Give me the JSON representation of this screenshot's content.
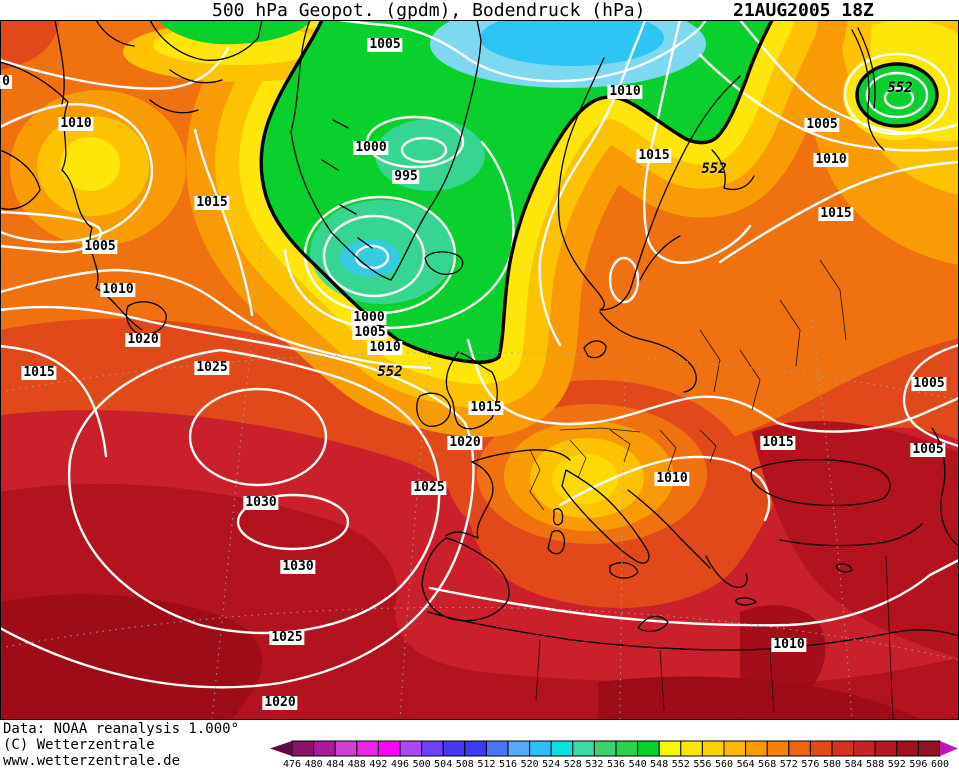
{
  "title": {
    "left": "500 hPa Geopot. (gpdm), Bodendruck (hPa)",
    "right": "21AUG2005 18Z"
  },
  "footer": {
    "credit_line1": "Data: NOAA reanalysis 1.000°",
    "credit_line2": "(C) Wetterzentrale",
    "credit_line3": "www.wetterzentrale.de"
  },
  "colorbar": {
    "parameter": "500 hPa geopotential (gpdm)",
    "tick_labels": [
      "476",
      "480",
      "484",
      "488",
      "492",
      "496",
      "500",
      "504",
      "508",
      "512",
      "516",
      "520",
      "524",
      "528",
      "532",
      "536",
      "540",
      "548",
      "552",
      "556",
      "560",
      "564",
      "568",
      "572",
      "576",
      "580",
      "584",
      "588",
      "592",
      "596",
      "600"
    ],
    "segments": [
      {
        "from": 476,
        "color": "#8a1268"
      },
      {
        "from": 480,
        "color": "#a81c9c"
      },
      {
        "from": 484,
        "color": "#cf3fd4"
      },
      {
        "from": 488,
        "color": "#ea25ea"
      },
      {
        "from": 492,
        "color": "#fb05fb"
      },
      {
        "from": 496,
        "color": "#a94af2"
      },
      {
        "from": 500,
        "color": "#6d42f2"
      },
      {
        "from": 504,
        "color": "#4637ec"
      },
      {
        "from": 508,
        "color": "#3a3cee"
      },
      {
        "from": 512,
        "color": "#4a76f6"
      },
      {
        "from": 516,
        "color": "#58aaf8"
      },
      {
        "from": 520,
        "color": "#2cc0f8"
      },
      {
        "from": 524,
        "color": "#0de0e0"
      },
      {
        "from": 528,
        "color": "#3fd9a4"
      },
      {
        "from": 532,
        "color": "#3fd06e"
      },
      {
        "from": 536,
        "color": "#2ed14e"
      },
      {
        "from": 540,
        "color": "#0ad02e"
      },
      {
        "from": 548,
        "color": "#f8f802"
      },
      {
        "from": 552,
        "color": "#fbe802"
      },
      {
        "from": 556,
        "color": "#fdd202"
      },
      {
        "from": 560,
        "color": "#fdb803"
      },
      {
        "from": 564,
        "color": "#fb9b04"
      },
      {
        "from": 568,
        "color": "#f58206"
      },
      {
        "from": 572,
        "color": "#ec660e"
      },
      {
        "from": 576,
        "color": "#e04b16"
      },
      {
        "from": 580,
        "color": "#d13520"
      },
      {
        "from": 584,
        "color": "#c22428"
      },
      {
        "from": 588,
        "color": "#b01a22"
      },
      {
        "from": 592,
        "color": "#a0121c"
      },
      {
        "from": 596,
        "color": "#8f1524"
      }
    ],
    "arrow_left_color": "#5e0a46",
    "arrow_right_color": "#c215b5"
  },
  "map": {
    "labels": [
      {
        "text": "0",
        "cls": "plabel",
        "style": "left:6px;top:62px"
      },
      {
        "text": "1005",
        "cls": "plabel",
        "style": "left:385px;top:25px"
      },
      {
        "text": "1010",
        "cls": "plabel",
        "style": "left:76px;top:104px"
      },
      {
        "text": "1000",
        "cls": "plabel",
        "style": "left:371px;top:128px"
      },
      {
        "text": "995",
        "cls": "plabel",
        "style": "left:406px;top:157px"
      },
      {
        "text": "1015",
        "cls": "plabel",
        "style": "left:212px;top:183px"
      },
      {
        "text": "1005",
        "cls": "plabel",
        "style": "left:100px;top:227px"
      },
      {
        "text": "1010",
        "cls": "plabel",
        "style": "left:118px;top:270px"
      },
      {
        "text": "1000",
        "cls": "plabel",
        "style": "left:369px;top:298px"
      },
      {
        "text": "1005",
        "cls": "plabel",
        "style": "left:370px;top:313px"
      },
      {
        "text": "1010",
        "cls": "plabel",
        "style": "left:385px;top:328px"
      },
      {
        "text": "552",
        "cls": "plabel geo",
        "style": "left:390px;top:352px"
      },
      {
        "text": "1020",
        "cls": "plabel",
        "style": "left:143px;top:320px"
      },
      {
        "text": "1015",
        "cls": "plabel",
        "style": "left:39px;top:353px"
      },
      {
        "text": "1025",
        "cls": "plabel",
        "style": "left:212px;top:348px"
      },
      {
        "text": "1010",
        "cls": "plabel",
        "style": "left:625px;top:72px"
      },
      {
        "text": "1015",
        "cls": "plabel",
        "style": "left:654px;top:136px"
      },
      {
        "text": "552",
        "cls": "plabel geo",
        "style": "left:714px;top:149px"
      },
      {
        "text": "552",
        "cls": "plabel geo",
        "style": "left:900px;top:68px"
      },
      {
        "text": "1005",
        "cls": "plabel",
        "style": "left:822px;top:105px"
      },
      {
        "text": "1010",
        "cls": "plabel",
        "style": "left:831px;top:140px"
      },
      {
        "text": "1015",
        "cls": "plabel",
        "style": "left:836px;top:194px"
      },
      {
        "text": "1015",
        "cls": "plabel",
        "style": "left:486px;top:388px"
      },
      {
        "text": "1020",
        "cls": "plabel",
        "style": "left:465px;top:423px"
      },
      {
        "text": "1025",
        "cls": "plabel",
        "style": "left:429px;top:468px"
      },
      {
        "text": "1030",
        "cls": "plabel",
        "style": "left:261px;top:483px"
      },
      {
        "text": "1030",
        "cls": "plabel",
        "style": "left:298px;top:547px"
      },
      {
        "text": "1025",
        "cls": "plabel",
        "style": "left:287px;top:618px"
      },
      {
        "text": "1020",
        "cls": "plabel",
        "style": "left:280px;top:683px"
      },
      {
        "text": "1015",
        "cls": "plabel",
        "style": "left:778px;top:423px"
      },
      {
        "text": "1005",
        "cls": "plabel",
        "style": "left:929px;top:364px"
      },
      {
        "text": "1005",
        "cls": "plabel",
        "style": "left:928px;top:430px"
      },
      {
        "text": "1010",
        "cls": "plabel",
        "style": "left:672px;top:459px"
      },
      {
        "text": "1010",
        "cls": "plabel",
        "style": "left:789px;top:625px"
      }
    ]
  }
}
